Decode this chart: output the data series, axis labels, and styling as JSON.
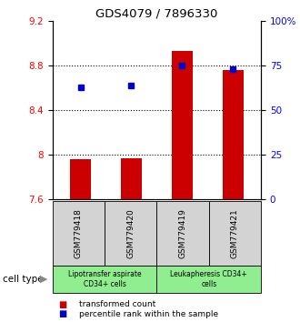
{
  "title": "GDS4079 / 7896330",
  "samples": [
    "GSM779418",
    "GSM779420",
    "GSM779419",
    "GSM779421"
  ],
  "transformed_counts": [
    7.96,
    7.97,
    8.93,
    8.76
  ],
  "percentile_ranks": [
    63,
    64,
    75,
    73
  ],
  "ylim_left": [
    7.6,
    9.2
  ],
  "ylim_right": [
    0,
    100
  ],
  "yticks_left": [
    7.6,
    8.0,
    8.4,
    8.8,
    9.2
  ],
  "yticks_right": [
    0,
    25,
    50,
    75,
    100
  ],
  "ytick_labels_left": [
    "7.6",
    "8",
    "8.4",
    "8.8",
    "9.2"
  ],
  "ytick_labels_right": [
    "0",
    "25",
    "50",
    "75",
    "100%"
  ],
  "dotted_lines": [
    8.0,
    8.4,
    8.8
  ],
  "bar_color": "#cc0000",
  "dot_color": "#0000cc",
  "group_labels": [
    "Lipotransfer aspirate\nCD34+ cells",
    "Leukapheresis CD34+\ncells"
  ],
  "group_bg_color": "#90ee90",
  "sample_bg_color": "#d3d3d3",
  "legend_bar_label": "transformed count",
  "legend_dot_label": "percentile rank within the sample",
  "cell_type_label": "cell type",
  "bar_width": 0.4,
  "x_positions": [
    0,
    1,
    2,
    3
  ]
}
